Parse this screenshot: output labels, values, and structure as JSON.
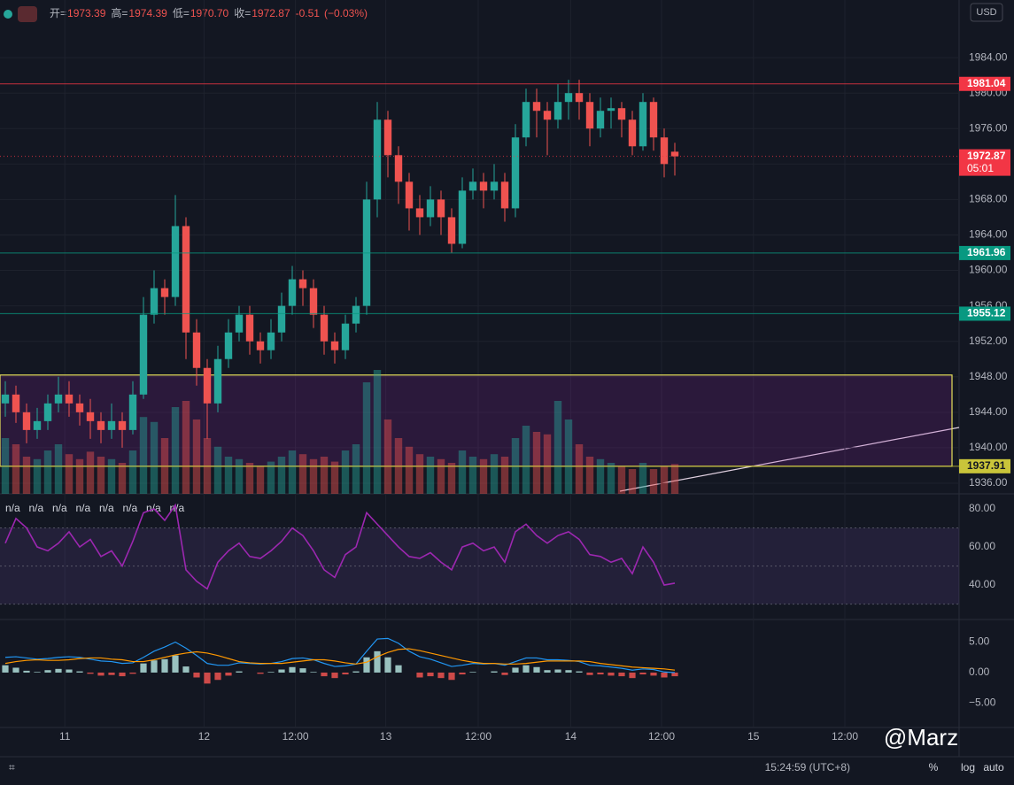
{
  "chart_data": {
    "type": "candlestick",
    "header": {
      "items": [
        {
          "label": "开=",
          "value": 1973.39
        },
        {
          "label": "高=",
          "value": 1974.39
        },
        {
          "label": "低=",
          "value": 1970.7,
          "value_label": "1970.70"
        },
        {
          "label": "收=",
          "value": 1972.87
        }
      ],
      "change": -0.51,
      "change_pct": "(−0.03%)"
    },
    "currency": "USD",
    "countdown": "05:01",
    "up_color": "#26a69a",
    "down_color": "#ef5350",
    "open": [
      1945,
      1946,
      1944,
      1942,
      1943,
      1945,
      1946,
      1945,
      1944,
      1943,
      1942,
      1943,
      1942,
      1946,
      1955,
      1958,
      1957,
      1965,
      1953,
      1949,
      1945,
      1950,
      1953,
      1955,
      1952,
      1951,
      1953,
      1956,
      1959,
      1958,
      1955,
      1952,
      1951,
      1954,
      1956,
      1968,
      1977,
      1973,
      1970,
      1967,
      1966,
      1968,
      1966,
      1963,
      1969,
      1970,
      1969,
      1970,
      1967,
      1975,
      1979,
      1978,
      1977,
      1979,
      1980,
      1979,
      1976,
      1978,
      1978.3,
      1977,
      1974,
      1979,
      1975,
      1973.39
    ],
    "high": [
      1947.5,
      1947,
      1945,
      1944.5,
      1946,
      1948,
      1947.5,
      1946,
      1945.5,
      1944,
      1945,
      1944,
      1947.5,
      1957,
      1960,
      1959,
      1968.5,
      1966,
      1954.5,
      1950,
      1951.5,
      1954.5,
      1956,
      1956,
      1953,
      1954.5,
      1957.5,
      1960.5,
      1960,
      1959,
      1956,
      1953,
      1955,
      1957,
      1970,
      1979,
      1978,
      1974,
      1971,
      1968.5,
      1969.5,
      1969,
      1967,
      1970.5,
      1971.5,
      1971,
      1972,
      1971,
      1976.5,
      1980.5,
      1980.5,
      1979,
      1981,
      1981.5,
      1981.5,
      1980,
      1979.5,
      1979.5,
      1979,
      1978,
      1980,
      1979.5,
      1976,
      1974.39
    ],
    "low": [
      1943.5,
      1942.8,
      1940.5,
      1941,
      1942,
      1944,
      1943.5,
      1942.5,
      1941,
      1940.5,
      1941,
      1940,
      1941.5,
      1945.5,
      1954,
      1955,
      1956,
      1950,
      1947,
      1941,
      1944,
      1949,
      1952,
      1950.5,
      1949.5,
      1950,
      1952,
      1955,
      1956,
      1953.5,
      1950.5,
      1949.5,
      1950,
      1953,
      1955,
      1966,
      1970.5,
      1967.5,
      1964.5,
      1964,
      1965,
      1964,
      1962,
      1962.5,
      1968,
      1967,
      1968,
      1965.5,
      1966,
      1974,
      1975,
      1973,
      1976,
      1977,
      1977,
      1974,
      1975,
      1976,
      1975,
      1973,
      1973.5,
      1973.5,
      1970.5,
      1970.7
    ],
    "close": [
      1946,
      1944,
      1942,
      1943,
      1945,
      1946,
      1945,
      1944,
      1943,
      1942,
      1943,
      1942,
      1946,
      1955,
      1958,
      1957,
      1965,
      1953,
      1949,
      1945,
      1950,
      1953,
      1955,
      1952,
      1951,
      1953,
      1956,
      1959,
      1958,
      1955,
      1952,
      1951,
      1954,
      1956,
      1968,
      1977,
      1973,
      1970,
      1967,
      1966,
      1968,
      1966,
      1963,
      1969,
      1970,
      1969,
      1970,
      1967,
      1975,
      1979,
      1978,
      1977,
      1979,
      1980,
      1979,
      1976,
      1978,
      1978.3,
      1977,
      1974,
      1979,
      1975,
      1972,
      1972.87
    ],
    "volume": [
      45,
      40,
      30,
      28,
      35,
      40,
      32,
      28,
      34,
      30,
      28,
      25,
      35,
      62,
      58,
      45,
      70,
      75,
      60,
      45,
      38,
      30,
      28,
      25,
      22,
      26,
      30,
      35,
      32,
      28,
      30,
      26,
      35,
      40,
      90,
      100,
      60,
      45,
      38,
      32,
      30,
      28,
      25,
      35,
      30,
      28,
      32,
      30,
      45,
      55,
      50,
      48,
      75,
      60,
      40,
      30,
      28,
      25,
      22,
      20,
      25,
      20,
      22,
      24
    ],
    "vlim": [
      0,
      100
    ],
    "xlim": [
      -0.5,
      89.75
    ],
    "xticks": [
      {
        "value": 5.6,
        "label": "11"
      },
      {
        "value": 18.7,
        "label": "12"
      },
      {
        "value": 27.3,
        "label": "12:00"
      },
      {
        "value": 35.8,
        "label": "13"
      },
      {
        "value": 44.5,
        "label": "12:00"
      },
      {
        "value": 53.2,
        "label": "14"
      },
      {
        "value": 61.75,
        "label": "12:00"
      },
      {
        "value": 70.4,
        "label": "15"
      },
      {
        "value": 79,
        "label": "12:00"
      }
    ],
    "ylim": [
      1934.8,
      1990.5
    ],
    "yticks": [
      {
        "value": 1936,
        "label": "1936.00"
      },
      {
        "value": 1940,
        "label": "1940.00"
      },
      {
        "value": 1944,
        "label": "1944.00"
      },
      {
        "value": 1948,
        "label": "1948.00"
      },
      {
        "value": 1952,
        "label": "1952.00"
      },
      {
        "value": 1956,
        "label": "1956.00"
      },
      {
        "value": 1960,
        "label": "1960.00"
      },
      {
        "value": 1964,
        "label": "1964.00"
      },
      {
        "value": 1968,
        "label": "1968.00"
      },
      {
        "value": 1972,
        "label": "1972.00"
      },
      {
        "value": 1976,
        "label": "1976.00"
      },
      {
        "value": 1980,
        "label": "1980.00"
      },
      {
        "value": 1984,
        "label": "1984.00"
      }
    ],
    "levels": [
      {
        "value": 1981.04,
        "color": "#f23645"
      },
      {
        "value": 1972.87,
        "color": "#f23645"
      },
      {
        "value": 1961.96,
        "color": "#089981"
      },
      {
        "value": 1955.12,
        "color": "#089981"
      },
      {
        "value": 1937.91,
        "color": "#c9c43a"
      }
    ],
    "zone": [
      1937.91,
      1948.2
    ],
    "rsi": {
      "labels": [
        "n/a",
        "n/a",
        "n/a",
        "n/a",
        "n/a",
        "n/a",
        "n/a",
        "n/a"
      ],
      "color": "#9c27b0",
      "values": [
        62,
        75,
        70,
        60,
        58,
        62,
        68,
        60,
        64,
        55,
        58,
        50,
        63,
        78,
        80,
        74,
        82,
        48,
        42,
        38,
        52,
        58,
        62,
        55,
        54,
        58,
        63,
        70,
        66,
        58,
        48,
        44,
        56,
        60,
        78,
        72,
        66,
        60,
        55,
        54,
        57,
        52,
        48,
        60,
        62,
        58,
        60,
        52,
        68,
        72,
        66,
        62,
        66,
        68,
        64,
        56,
        55,
        52,
        54,
        46,
        60,
        52,
        40,
        41
      ],
      "bands": [
        30,
        50,
        70
      ],
      "ylim": [
        21.9,
        87
      ],
      "yticks": [
        {
          "value": 40,
          "label": "40.00"
        },
        {
          "value": 60,
          "label": "60.00"
        },
        {
          "value": 80,
          "label": "80.00"
        }
      ]
    },
    "macd": {
      "hist": [
        1.2,
        0.8,
        0.3,
        0.1,
        0.4,
        0.6,
        0.5,
        0.2,
        -0.2,
        -0.5,
        -0.4,
        -0.6,
        -0.2,
        1.5,
        2.0,
        2.2,
        2.8,
        1.0,
        -0.8,
        -1.8,
        -1.2,
        -0.5,
        0.2,
        0.0,
        -0.2,
        0.1,
        0.5,
        0.9,
        0.7,
        0.1,
        -0.6,
        -0.9,
        -0.3,
        0.2,
        2.5,
        3.5,
        2.5,
        1.2,
        0.0,
        -0.8,
        -0.6,
        -0.9,
        -1.2,
        -0.3,
        0.1,
        0.0,
        0.2,
        -0.4,
        0.8,
        1.2,
        0.9,
        0.4,
        0.5,
        0.4,
        0.2,
        -0.4,
        -0.3,
        -0.5,
        -0.6,
        -0.9,
        -0.3,
        -0.5,
        -0.8,
        -0.6
      ],
      "macd": [
        2.5,
        2.6,
        2.4,
        2.2,
        2.3,
        2.5,
        2.6,
        2.5,
        2.2,
        1.9,
        1.8,
        1.5,
        1.6,
        2.5,
        3.5,
        4.2,
        5.0,
        4.0,
        2.8,
        1.5,
        1.2,
        1.2,
        1.6,
        1.5,
        1.4,
        1.5,
        1.8,
        2.3,
        2.4,
        2.1,
        1.5,
        1.0,
        1.1,
        1.4,
        3.5,
        5.5,
        5.6,
        4.8,
        3.5,
        2.6,
        2.2,
        1.6,
        1.0,
        1.2,
        1.5,
        1.4,
        1.5,
        1.2,
        1.8,
        2.4,
        2.4,
        2.1,
        2.1,
        2.0,
        1.8,
        1.2,
        1.1,
        0.9,
        0.7,
        0.4,
        0.6,
        0.5,
        0.1,
        0.0
      ],
      "signal": [
        1.5,
        1.8,
        2.0,
        2.1,
        2.0,
        2.0,
        2.1,
        2.3,
        2.4,
        2.4,
        2.2,
        2.1,
        1.8,
        1.8,
        2.1,
        2.5,
        2.9,
        3.2,
        3.4,
        3.2,
        2.8,
        2.3,
        1.8,
        1.6,
        1.5,
        1.5,
        1.5,
        1.7,
        1.9,
        2.1,
        2.1,
        1.9,
        1.6,
        1.4,
        1.7,
        2.6,
        3.3,
        3.8,
        3.9,
        3.6,
        3.2,
        2.8,
        2.4,
        2.0,
        1.7,
        1.5,
        1.5,
        1.4,
        1.4,
        1.5,
        1.7,
        1.9,
        1.9,
        1.9,
        1.9,
        1.8,
        1.5,
        1.3,
        1.1,
        0.9,
        0.8,
        0.7,
        0.6,
        0.4
      ],
      "macd_color": "#2196f3",
      "signal_color": "#ff9800",
      "ylim": [
        -9,
        8.7
      ],
      "yticks": [
        {
          "value": -5,
          "label": "−5.00"
        },
        {
          "value": 0,
          "label": "0.00"
        },
        {
          "value": 5,
          "label": "5.00"
        }
      ]
    },
    "footer": {
      "time": "15:24:59 (UTC+8)",
      "buttons": [
        "%",
        "log",
        "auto"
      ]
    },
    "watermark": "@Marz"
  }
}
